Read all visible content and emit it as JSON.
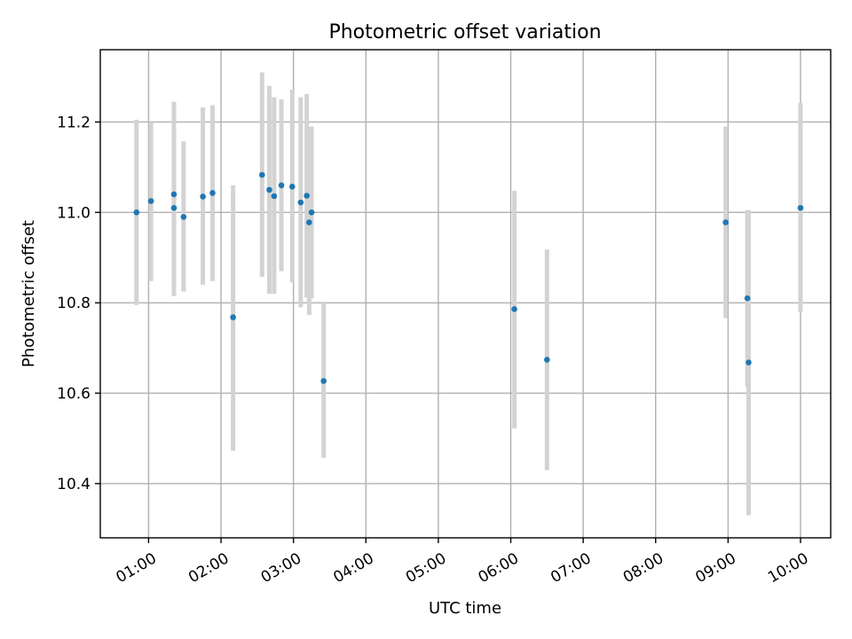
{
  "chart_data": {
    "type": "scatter",
    "title": "Photometric offset variation",
    "xlabel": "UTC time",
    "ylabel": "Photometric offset",
    "x_ticks": [
      "01:00",
      "02:00",
      "03:00",
      "04:00",
      "05:00",
      "06:00",
      "07:00",
      "08:00",
      "09:00",
      "10:00"
    ],
    "y_ticks": [
      "10.4",
      "10.6",
      "10.8",
      "11.0",
      "11.2"
    ],
    "xlim": [
      "00:20",
      "10:25"
    ],
    "ylim": [
      10.28,
      11.36
    ],
    "grid": true,
    "marker_color": "#1f77b4",
    "errorbar_color": "#d3d3d3",
    "points": [
      {
        "x": "00:50",
        "y": 11.0,
        "ylow": 10.795,
        "yhigh": 11.205
      },
      {
        "x": "01:02",
        "y": 11.025,
        "ylow": 10.848,
        "yhigh": 11.2
      },
      {
        "x": "01:21",
        "y": 11.04,
        "ylow": 10.832,
        "yhigh": 11.245
      },
      {
        "x": "01:21",
        "y": 11.01,
        "ylow": 10.815,
        "yhigh": 11.205
      },
      {
        "x": "01:29",
        "y": 10.99,
        "ylow": 10.825,
        "yhigh": 11.157
      },
      {
        "x": "01:45",
        "y": 11.035,
        "ylow": 10.84,
        "yhigh": 11.232
      },
      {
        "x": "01:53",
        "y": 11.043,
        "ylow": 10.848,
        "yhigh": 11.237
      },
      {
        "x": "02:10",
        "y": 10.768,
        "ylow": 10.473,
        "yhigh": 11.06
      },
      {
        "x": "02:34",
        "y": 11.083,
        "ylow": 10.857,
        "yhigh": 11.31
      },
      {
        "x": "02:40",
        "y": 11.05,
        "ylow": 10.82,
        "yhigh": 11.28
      },
      {
        "x": "02:44",
        "y": 11.036,
        "ylow": 10.82,
        "yhigh": 11.255
      },
      {
        "x": "02:50",
        "y": 11.06,
        "ylow": 10.87,
        "yhigh": 11.25
      },
      {
        "x": "02:59",
        "y": 11.057,
        "ylow": 10.845,
        "yhigh": 11.272
      },
      {
        "x": "03:06",
        "y": 11.022,
        "ylow": 10.79,
        "yhigh": 11.255
      },
      {
        "x": "03:11",
        "y": 11.037,
        "ylow": 10.812,
        "yhigh": 11.262
      },
      {
        "x": "03:13",
        "y": 10.978,
        "ylow": 10.773,
        "yhigh": 11.19
      },
      {
        "x": "03:15",
        "y": 11.0,
        "ylow": 10.81,
        "yhigh": 11.19
      },
      {
        "x": "03:25",
        "y": 10.627,
        "ylow": 10.457,
        "yhigh": 10.8
      },
      {
        "x": "06:03",
        "y": 10.786,
        "ylow": 10.522,
        "yhigh": 11.048
      },
      {
        "x": "06:30",
        "y": 10.674,
        "ylow": 10.43,
        "yhigh": 10.918
      },
      {
        "x": "08:58",
        "y": 10.978,
        "ylow": 10.766,
        "yhigh": 11.19
      },
      {
        "x": "09:16",
        "y": 10.81,
        "ylow": 10.615,
        "yhigh": 11.005
      },
      {
        "x": "09:17",
        "y": 10.668,
        "ylow": 10.33,
        "yhigh": 11.005
      },
      {
        "x": "10:00",
        "y": 11.01,
        "ylow": 10.78,
        "yhigh": 11.242
      }
    ]
  }
}
